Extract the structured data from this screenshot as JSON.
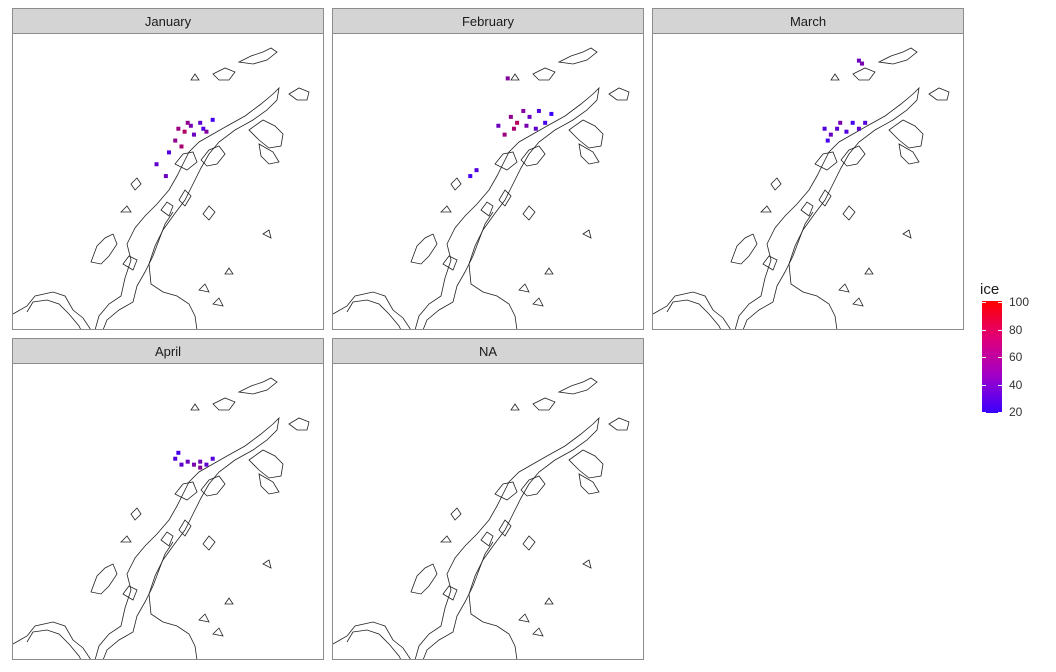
{
  "chart_data": {
    "type": "heatmap",
    "subtype": "faceted-map",
    "facets": [
      {
        "label": "January",
        "points": [
          [
            0.53,
            0.32,
            60
          ],
          [
            0.55,
            0.33,
            70
          ],
          [
            0.57,
            0.31,
            45
          ],
          [
            0.52,
            0.36,
            55
          ],
          [
            0.58,
            0.34,
            40
          ],
          [
            0.6,
            0.3,
            35
          ],
          [
            0.61,
            0.32,
            30
          ],
          [
            0.64,
            0.29,
            25
          ],
          [
            0.62,
            0.33,
            50
          ],
          [
            0.54,
            0.38,
            65
          ],
          [
            0.5,
            0.4,
            30
          ],
          [
            0.46,
            0.44,
            35
          ],
          [
            0.49,
            0.48,
            40
          ],
          [
            0.56,
            0.3,
            55
          ]
        ]
      },
      {
        "label": "February",
        "points": [
          [
            0.57,
            0.28,
            55
          ],
          [
            0.59,
            0.3,
            70
          ],
          [
            0.61,
            0.26,
            50
          ],
          [
            0.62,
            0.31,
            45
          ],
          [
            0.63,
            0.28,
            40
          ],
          [
            0.65,
            0.32,
            35
          ],
          [
            0.66,
            0.26,
            30
          ],
          [
            0.68,
            0.3,
            25
          ],
          [
            0.7,
            0.27,
            20
          ],
          [
            0.55,
            0.34,
            60
          ],
          [
            0.53,
            0.31,
            40
          ],
          [
            0.46,
            0.46,
            30
          ],
          [
            0.44,
            0.48,
            25
          ],
          [
            0.58,
            0.32,
            65
          ],
          [
            0.56,
            0.15,
            50
          ]
        ]
      },
      {
        "label": "March",
        "points": [
          [
            0.55,
            0.32,
            30
          ],
          [
            0.57,
            0.34,
            40
          ],
          [
            0.59,
            0.32,
            35
          ],
          [
            0.6,
            0.3,
            45
          ],
          [
            0.62,
            0.33,
            30
          ],
          [
            0.64,
            0.3,
            25
          ],
          [
            0.66,
            0.32,
            35
          ],
          [
            0.68,
            0.3,
            30
          ],
          [
            0.56,
            0.36,
            25
          ],
          [
            0.66,
            0.09,
            40
          ],
          [
            0.67,
            0.1,
            45
          ]
        ]
      },
      {
        "label": "April",
        "points": [
          [
            0.52,
            0.32,
            30
          ],
          [
            0.54,
            0.34,
            35
          ],
          [
            0.56,
            0.33,
            40
          ],
          [
            0.58,
            0.34,
            45
          ],
          [
            0.6,
            0.33,
            40
          ],
          [
            0.62,
            0.34,
            35
          ],
          [
            0.64,
            0.32,
            30
          ],
          [
            0.6,
            0.35,
            50
          ],
          [
            0.53,
            0.3,
            25
          ]
        ]
      },
      {
        "label": "NA",
        "points": []
      }
    ],
    "legend": {
      "title": "ice",
      "ticks": [
        100,
        80,
        60,
        40,
        20
      ],
      "min": 20,
      "max": 100,
      "low_color": "#3a00ff",
      "high_color": "#ff0000"
    }
  }
}
